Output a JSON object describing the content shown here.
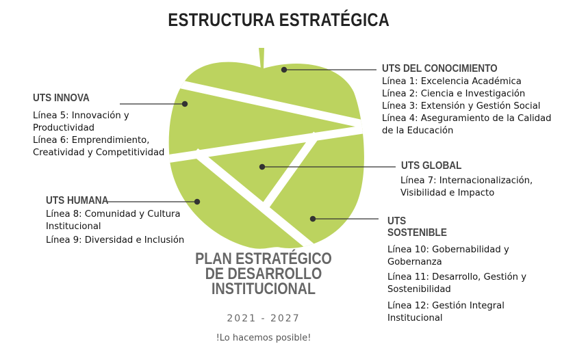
{
  "title": "ESTRUCTURA ESTRATÉGICA",
  "colors": {
    "apple": "#bcd35f",
    "connector": "#333333",
    "muted": "#666666"
  },
  "sections": {
    "conocimiento": {
      "title": "UTS DEL CONOCIMIENTO",
      "lines": [
        "Línea 1: Excelencia Académica",
        "Línea 2: Ciencia e Investigación",
        "Línea 3: Extensión y  Gestión Social",
        "Línea 4: Aseguramiento de la Calidad",
        "de la Educación"
      ]
    },
    "innova": {
      "title": "UTS INNOVA",
      "lines": [
        "Línea 5: Innovación y",
        "Productividad",
        "Línea 6: Emprendimiento,",
        "Creatividad y Competitividad"
      ]
    },
    "global": {
      "title": "UTS GLOBAL",
      "lines": [
        "Línea 7: Internacionalización,",
        "Visibilidad e Impacto"
      ]
    },
    "humana": {
      "title": "UTS HUMANA",
      "lines": [
        "Línea 8:  Comunidad y Cultura",
        "Institucional",
        "Línea 9:  Diversidad e Inclusión"
      ]
    },
    "sostenible": {
      "title_1": "UTS",
      "title_2": "SOSTENIBLE",
      "lines": [
        "Línea 10: Gobernabilidad y",
        "Gobernanza",
        "Línea 11: Desarrollo, Gestión y",
        "Sostenibilidad",
        "Línea 12: Gestión Integral",
        "Institucional"
      ]
    }
  },
  "plan": {
    "line_1": "PLAN ESTRATÉGICO",
    "line_2": "DE DESARROLLO",
    "line_3": "INSTITUCIONAL"
  },
  "years": "2021  -  2027",
  "slogan": "!Lo hacemos posible!"
}
